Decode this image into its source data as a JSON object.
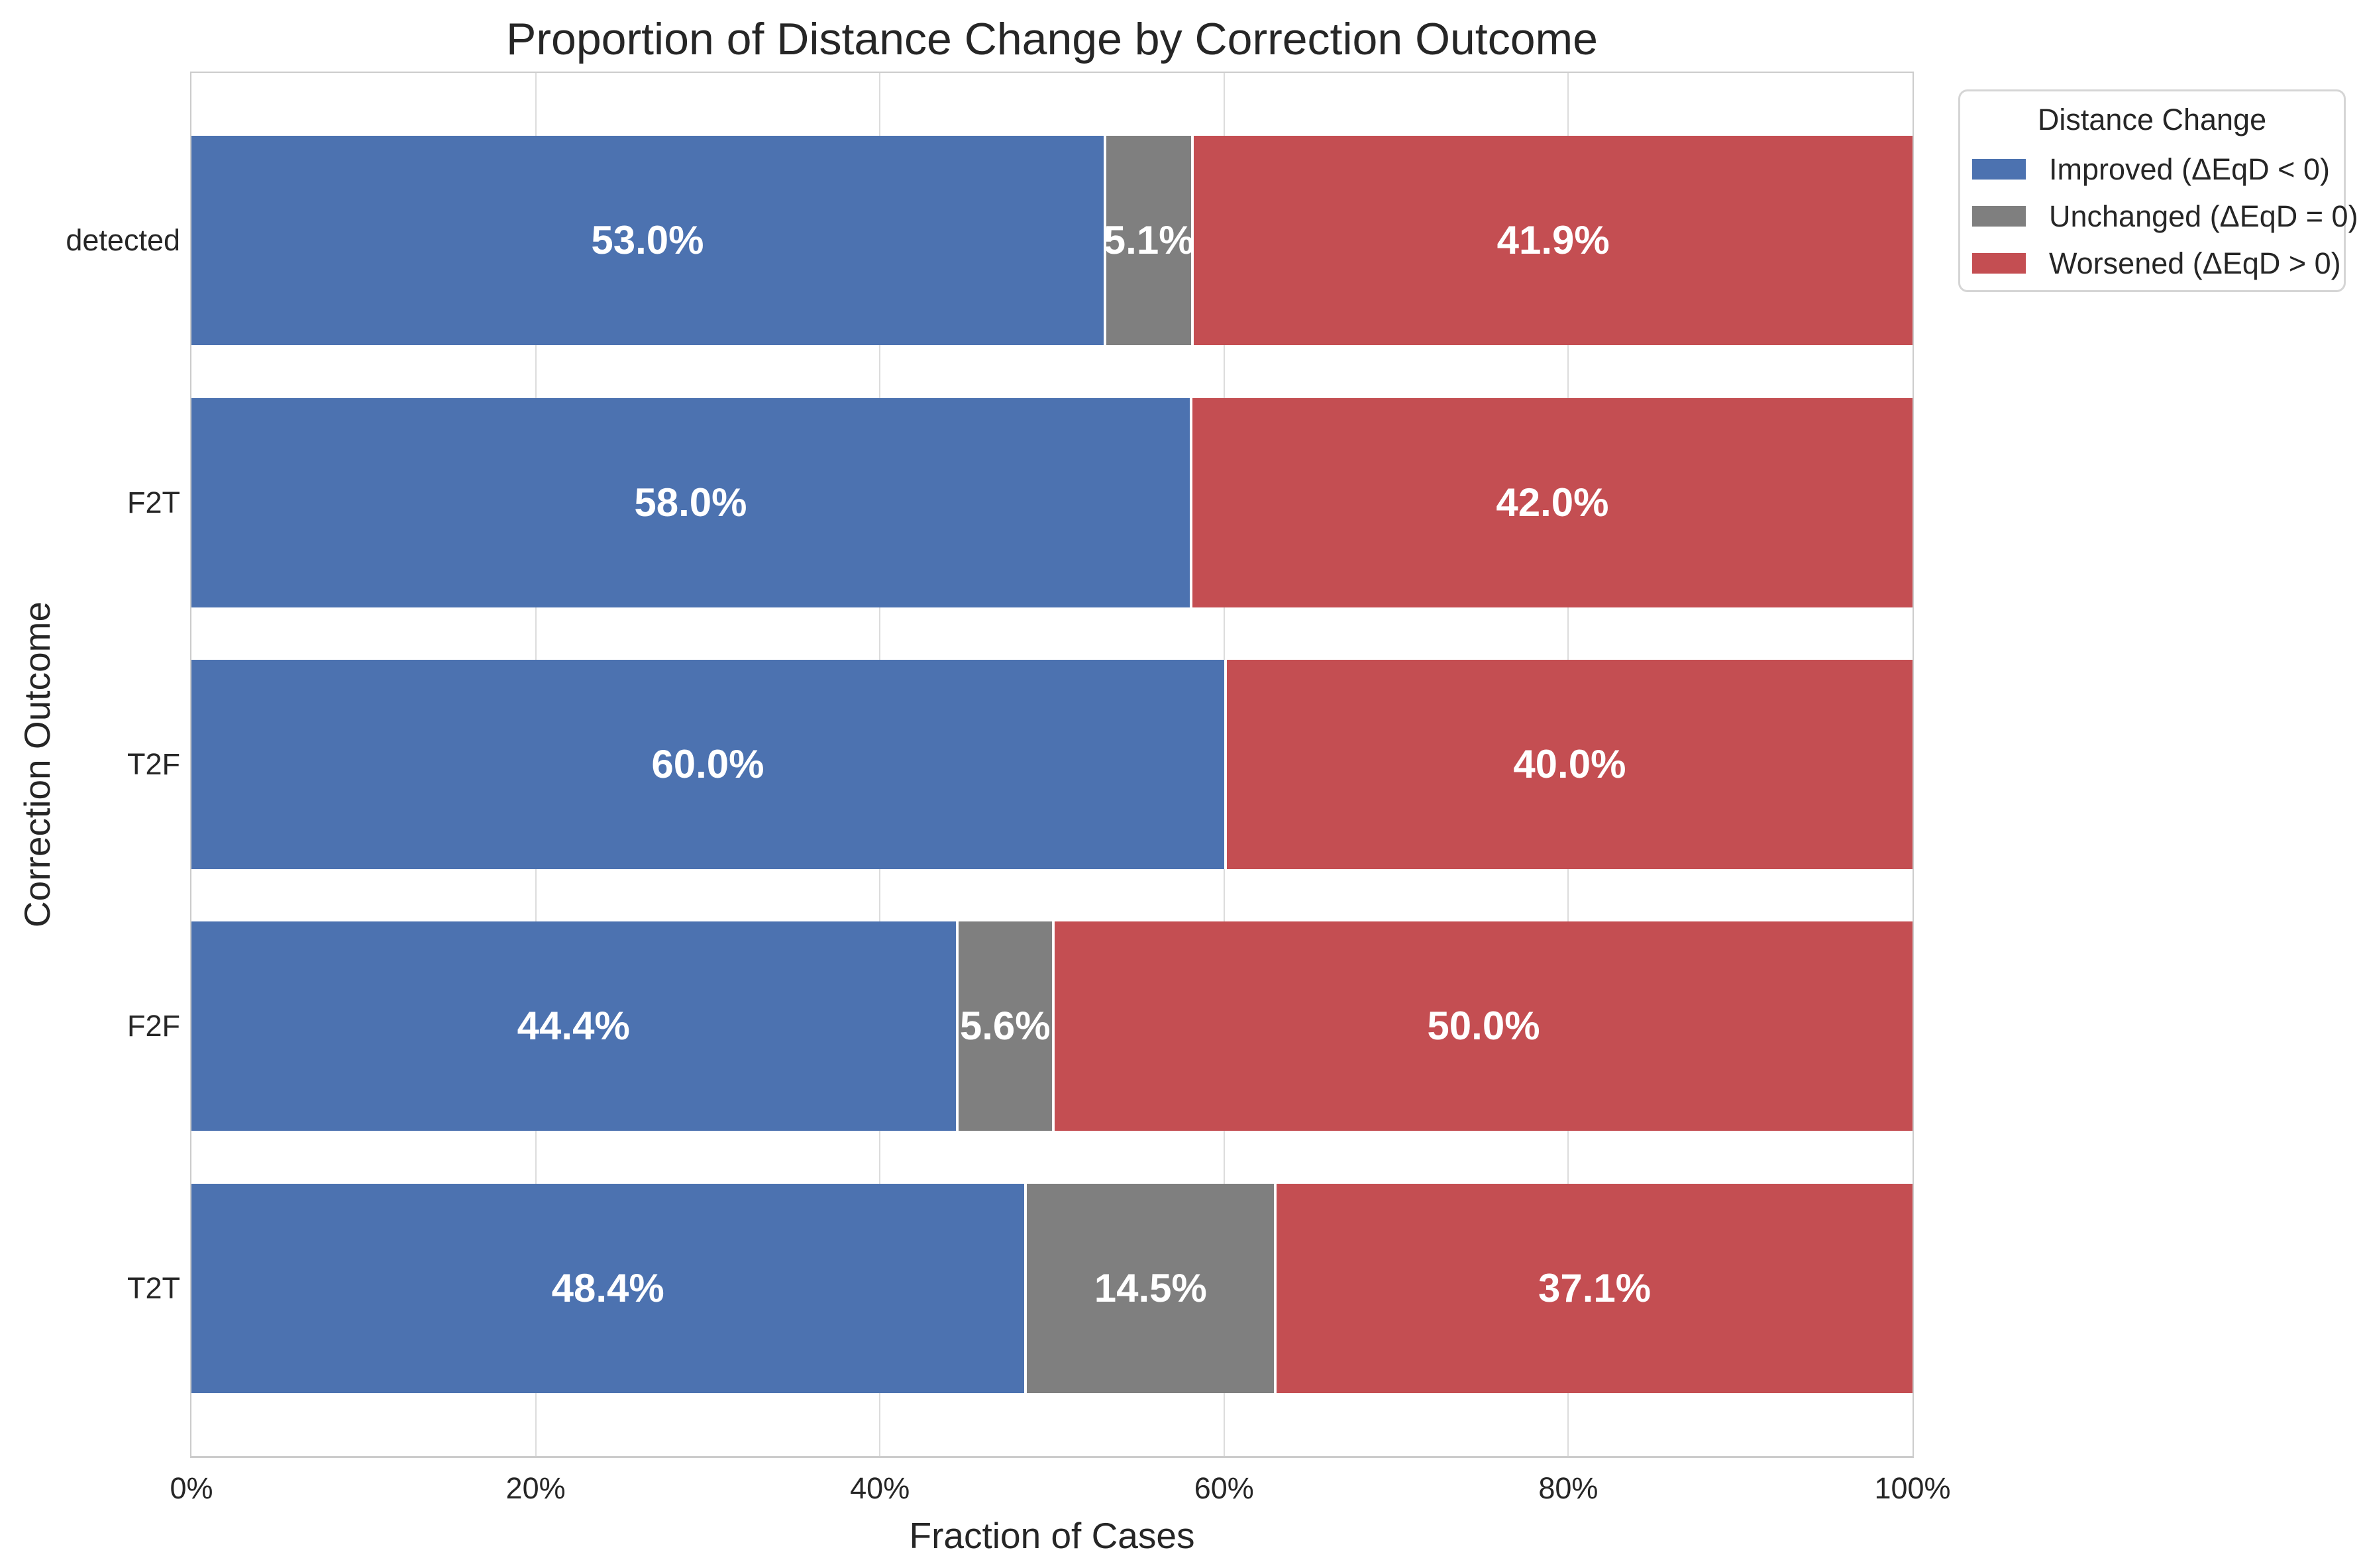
{
  "title": "Proportion of Distance Change by Correction Outcome",
  "chart_data": {
    "type": "bar",
    "orientation": "horizontal",
    "stacked": true,
    "title": "Proportion of Distance Change by Correction Outcome",
    "categories": [
      "detected",
      "F2T",
      "T2F",
      "F2F",
      "T2T"
    ],
    "series": [
      {
        "name": "Improved (ΔEqD < 0)",
        "color": "#4C72B0",
        "values": [
          53.0,
          58.0,
          60.0,
          44.4,
          48.4
        ]
      },
      {
        "name": "Unchanged (ΔEqD = 0)",
        "color": "#7F7F7F",
        "values": [
          5.1,
          0.0,
          0.0,
          5.6,
          14.5
        ]
      },
      {
        "name": "Worsened (ΔEqD > 0)",
        "color": "#C44E52",
        "values": [
          41.9,
          42.0,
          40.0,
          50.0,
          37.1
        ]
      }
    ],
    "value_label_format": "{value}%",
    "xlabel": "Fraction of Cases",
    "ylabel": "Correction Outcome",
    "xlim": [
      0,
      100
    ],
    "x_tick_values": [
      0,
      20,
      40,
      60,
      80,
      100
    ],
    "x_tick_labels": [
      "0%",
      "20%",
      "40%",
      "60%",
      "80%",
      "100%"
    ],
    "grid": "vertical",
    "legend_title": "Distance Change",
    "legend_position": "outside-upper-right"
  },
  "colors": {
    "grid": "#DCDCDC",
    "spine": "#CCCCCC",
    "text": "#262626",
    "bar_label": "#FFFFFF",
    "background": "#FFFFFF"
  }
}
